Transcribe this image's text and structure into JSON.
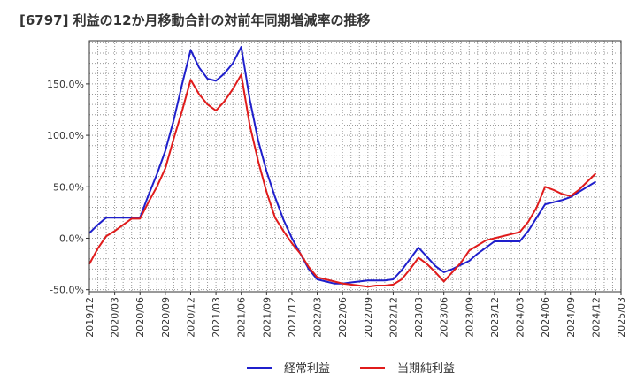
{
  "chart_data": {
    "type": "line",
    "title": "[6797]  利益の12か月移動合計の対前年同期増減率の推移",
    "xlabel": "",
    "ylabel": "",
    "ylim": [
      -52,
      192
    ],
    "grid": true,
    "legend_position": "bottom",
    "yticks": [
      {
        "value": 150,
        "label": "150.0%"
      },
      {
        "value": 100,
        "label": "100.0%"
      },
      {
        "value": 50,
        "label": "50.0%"
      },
      {
        "value": 0,
        "label": "0.0%"
      },
      {
        "value": -50,
        "label": "-50.0%"
      }
    ],
    "xtick_labels": [
      "2019/12",
      "2020/03",
      "2020/06",
      "2020/09",
      "2020/12",
      "2021/03",
      "2021/06",
      "2021/09",
      "2021/12",
      "2022/03",
      "2022/06",
      "2022/09",
      "2022/12",
      "2023/03",
      "2023/06",
      "2023/09",
      "2023/12",
      "2024/03",
      "2024/06",
      "2024/09",
      "2024/12",
      "2025/03"
    ],
    "x": [
      "2019/12",
      "2020/01",
      "2020/02",
      "2020/03",
      "2020/04",
      "2020/05",
      "2020/06",
      "2020/07",
      "2020/08",
      "2020/09",
      "2020/10",
      "2020/11",
      "2020/12",
      "2021/01",
      "2021/02",
      "2021/03",
      "2021/04",
      "2021/05",
      "2021/06",
      "2021/07",
      "2021/08",
      "2021/09",
      "2021/10",
      "2021/11",
      "2021/12",
      "2022/01",
      "2022/02",
      "2022/03",
      "2022/04",
      "2022/05",
      "2022/06",
      "2022/07",
      "2022/08",
      "2022/09",
      "2022/10",
      "2022/11",
      "2022/12",
      "2023/01",
      "2023/02",
      "2023/03",
      "2023/04",
      "2023/05",
      "2023/06",
      "2023/07",
      "2023/08",
      "2023/09",
      "2023/10",
      "2023/11",
      "2023/12",
      "2024/01",
      "2024/02",
      "2024/03",
      "2024/04",
      "2024/05",
      "2024/06",
      "2024/07",
      "2024/08",
      "2024/09",
      "2024/10",
      "2024/11",
      "2024/12"
    ],
    "series": [
      {
        "name": "経常利益",
        "color": "#1f1fcc",
        "values": [
          5,
          13,
          20,
          20,
          20,
          20,
          20,
          42,
          62,
          85,
          115,
          150,
          183,
          166,
          155,
          153,
          160,
          170,
          186,
          135,
          95,
          65,
          40,
          18,
          0,
          -15,
          -30,
          -40,
          -42,
          -44,
          -44,
          -43,
          -42,
          -41,
          -41,
          -41,
          -40,
          -31,
          -20,
          -9,
          -18,
          -27,
          -33,
          -30,
          -26,
          -22,
          -15,
          -9,
          -3,
          -3,
          -3,
          -3,
          7,
          20,
          33,
          35,
          37,
          40,
          45,
          50,
          55
        ]
      },
      {
        "name": "当期純利益",
        "color": "#e01b1b",
        "values": [
          -25,
          -10,
          2,
          7,
          13,
          19,
          19,
          35,
          50,
          68,
          97,
          124,
          154,
          140,
          130,
          124,
          133,
          145,
          159,
          110,
          75,
          45,
          20,
          7,
          -5,
          -15,
          -28,
          -38,
          -40,
          -42,
          -44,
          -45,
          -46,
          -47,
          -46,
          -46,
          -45,
          -40,
          -30,
          -19,
          -25,
          -33,
          -42,
          -33,
          -24,
          -12,
          -7,
          -2,
          0,
          2,
          4,
          6,
          16,
          30,
          50,
          47,
          43,
          41,
          47,
          55,
          63
        ]
      }
    ]
  }
}
